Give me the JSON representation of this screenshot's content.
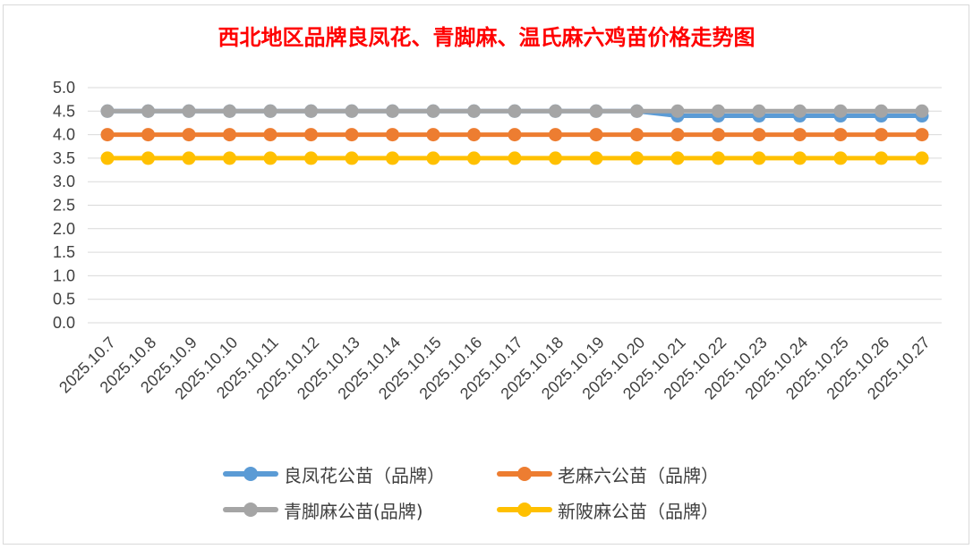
{
  "chart_data": {
    "type": "line",
    "title": "西北地区品牌良凤花、青脚麻、温氏麻六鸡苗价格走势图",
    "xlabel": "",
    "ylabel": "",
    "ylim": [
      0,
      5
    ],
    "yticks": [
      "0.0",
      "0.5",
      "1.0",
      "1.5",
      "2.0",
      "2.5",
      "3.0",
      "3.5",
      "4.0",
      "4.5",
      "5.0"
    ],
    "grid": true,
    "legend_position": "bottom",
    "categories": [
      "2025.10.7",
      "2025.10.8",
      "2025.10.9",
      "2025.10.10",
      "2025.10.11",
      "2025.10.12",
      "2025.10.13",
      "2025.10.14",
      "2025.10.15",
      "2025.10.16",
      "2025.10.17",
      "2025.10.18",
      "2025.10.19",
      "2025.10.20",
      "2025.10.21",
      "2025.10.22",
      "2025.10.23",
      "2025.10.24",
      "2025.10.25",
      "2025.10.26",
      "2025.10.27"
    ],
    "series": [
      {
        "name": "良凤花公苗（品牌）",
        "color": "#5b9bd5",
        "values": [
          4.5,
          4.5,
          4.5,
          4.5,
          4.5,
          4.5,
          4.5,
          4.5,
          4.5,
          4.5,
          4.5,
          4.5,
          4.5,
          4.5,
          4.4,
          4.4,
          4.4,
          4.4,
          4.4,
          4.4,
          4.4
        ]
      },
      {
        "name": "老麻六公苗（品牌）",
        "color": "#ed7d31",
        "values": [
          4.0,
          4.0,
          4.0,
          4.0,
          4.0,
          4.0,
          4.0,
          4.0,
          4.0,
          4.0,
          4.0,
          4.0,
          4.0,
          4.0,
          4.0,
          4.0,
          4.0,
          4.0,
          4.0,
          4.0,
          4.0
        ]
      },
      {
        "name": "青脚麻公苗(品牌)",
        "color": "#a5a5a5",
        "values": [
          4.5,
          4.5,
          4.5,
          4.5,
          4.5,
          4.5,
          4.5,
          4.5,
          4.5,
          4.5,
          4.5,
          4.5,
          4.5,
          4.5,
          4.5,
          4.5,
          4.5,
          4.5,
          4.5,
          4.5,
          4.5
        ]
      },
      {
        "name": "新陂麻公苗（品牌）",
        "color": "#ffc000",
        "values": [
          3.5,
          3.5,
          3.5,
          3.5,
          3.5,
          3.5,
          3.5,
          3.5,
          3.5,
          3.5,
          3.5,
          3.5,
          3.5,
          3.5,
          3.5,
          3.5,
          3.5,
          3.5,
          3.5,
          3.5,
          3.5
        ]
      }
    ]
  }
}
